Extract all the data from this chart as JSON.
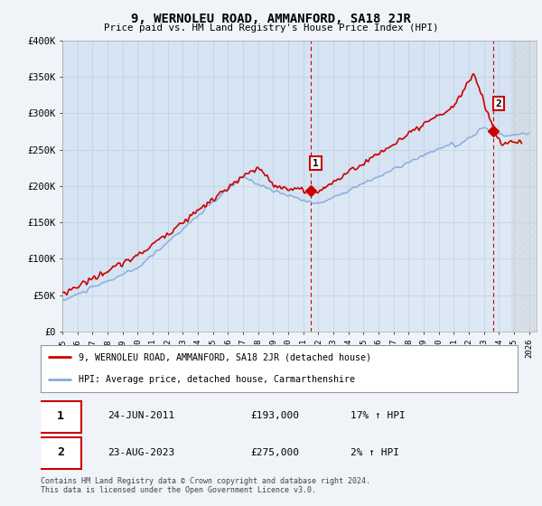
{
  "title": "9, WERNOLEU ROAD, AMMANFORD, SA18 2JR",
  "subtitle": "Price paid vs. HM Land Registry's House Price Index (HPI)",
  "ylim": [
    0,
    400000
  ],
  "xlim_start": 1995.0,
  "xlim_end": 2026.5,
  "hpi_color": "#88aadd",
  "price_color": "#cc0000",
  "dashed_color": "#cc0000",
  "grid_color": "#c8d8e8",
  "background_color": "#f0f4f8",
  "plot_bg_color": "#dce8f4",
  "transaction1": {
    "date": "24-JUN-2011",
    "price": 193000,
    "label": "1",
    "x": 2011.48
  },
  "transaction2": {
    "date": "23-AUG-2023",
    "price": 275000,
    "label": "2",
    "x": 2023.64
  },
  "legend_house": "9, WERNOLEU ROAD, AMMANFORD, SA18 2JR (detached house)",
  "legend_hpi": "HPI: Average price, detached house, Carmarthenshire",
  "footnote": "Contains HM Land Registry data © Crown copyright and database right 2024.\nThis data is licensed under the Open Government Licence v3.0.",
  "table_row1": [
    "1",
    "24-JUN-2011",
    "£193,000",
    "17% ↑ HPI"
  ],
  "table_row2": [
    "2",
    "23-AUG-2023",
    "£275,000",
    "2% ↑ HPI"
  ]
}
